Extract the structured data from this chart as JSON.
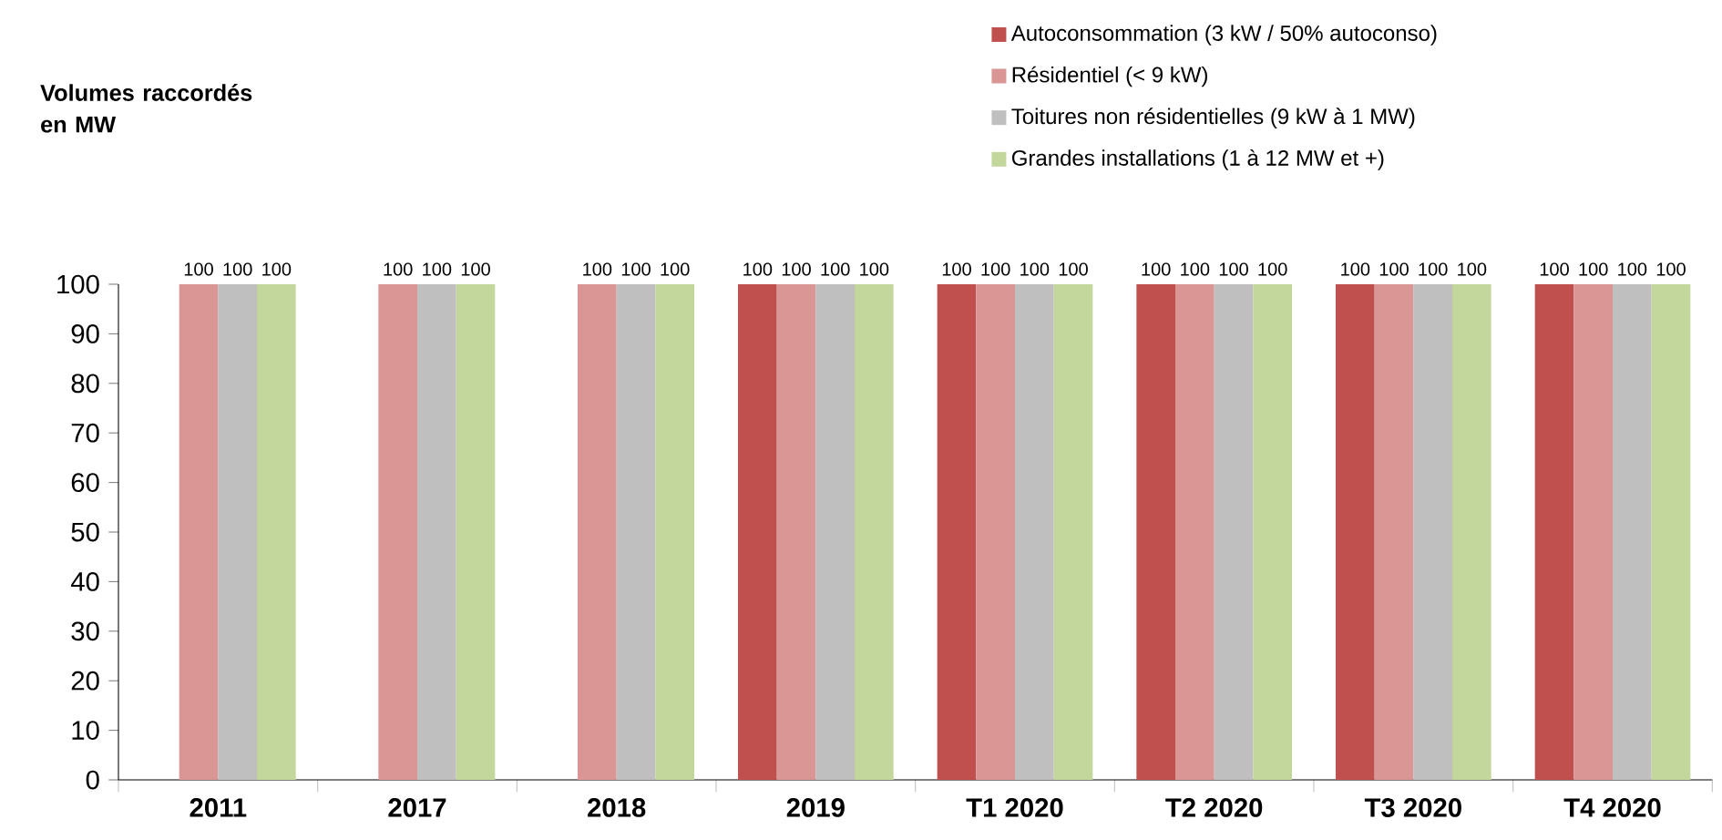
{
  "chart_data": {
    "type": "bar",
    "annotations": [
      "Volumes raccordés en MW"
    ],
    "categories": [
      "2011",
      "2017",
      "2018",
      "2019",
      "T1 2020",
      "T2 2020",
      "T3 2020",
      "T4 2020"
    ],
    "series": [
      {
        "name": "Autoconsommation (3 kW / 50% autoconso)",
        "color": "#c0504d",
        "values": [
          null,
          null,
          null,
          100,
          100,
          100,
          100,
          100
        ]
      },
      {
        "name": "Résidentiel (< 9 kW)",
        "color": "#d99694",
        "values": [
          100,
          100,
          100,
          100,
          100,
          100,
          100,
          100
        ]
      },
      {
        "name": "Toitures non résidentielles (9 kW à 1 MW)",
        "color": "#bfbfbf",
        "values": [
          100,
          100,
          100,
          100,
          100,
          100,
          100,
          100
        ]
      },
      {
        "name": "Grandes installations (1 à 12 MW et +)",
        "color": "#c3d69b",
        "values": [
          100,
          100,
          100,
          100,
          100,
          100,
          100,
          100
        ]
      }
    ],
    "ylim": [
      0,
      100
    ],
    "yticks": [
      0,
      10,
      20,
      30,
      40,
      50,
      60,
      70,
      80,
      90,
      100
    ],
    "data_labels": true,
    "legend": "top right",
    "grid": false
  }
}
